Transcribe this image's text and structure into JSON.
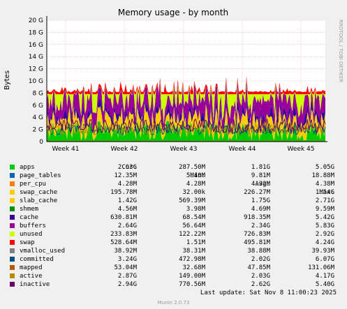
{
  "chart_data": {
    "type": "area",
    "title": "Memory usage - by month",
    "ylabel": "Bytes",
    "ylim": [
      0,
      20
    ],
    "yunit": "G",
    "yticks": [
      "0",
      "2 G",
      "4 G",
      "6 G",
      "8 G",
      "10 G",
      "12 G",
      "14 G",
      "16 G",
      "18 G",
      "20 G"
    ],
    "xticks": [
      "Week 41",
      "Week 42",
      "Week 43",
      "Week 44",
      "Week 45"
    ],
    "grid": true,
    "legend_placement": "bottom",
    "headers": {
      "cur": "Cur:",
      "min": "Min:",
      "avg": "Avg:",
      "max": "Max:"
    },
    "series": [
      {
        "name": "apps",
        "color": "#00cc00",
        "cur": "2.63G",
        "min": "287.50M",
        "avg": "1.81G",
        "max": "5.05G",
        "value_g": 1.81
      },
      {
        "name": "page_tables",
        "color": "#0066b3",
        "cur": "12.35M",
        "min": "5.40M",
        "avg": "9.81M",
        "max": "18.88M",
        "value_g": 0.01
      },
      {
        "name": "per_cpu",
        "color": "#ff8000",
        "cur": "4.28M",
        "min": "4.28M",
        "avg": "4.32M",
        "max": "4.38M",
        "value_g": 0.004
      },
      {
        "name": "swap_cache",
        "color": "#ffcc00",
        "cur": "195.78M",
        "min": "32.00k",
        "avg": "226.27M",
        "max": "1.54G",
        "value_g": 0.22
      },
      {
        "name": "slab_cache",
        "color": "#ffcc00",
        "cur": "1.42G",
        "min": "569.39M",
        "avg": "1.75G",
        "max": "2.71G",
        "value_g": 1.75
      },
      {
        "name": "shmem",
        "color": "#008f00",
        "cur": "4.56M",
        "min": "3.98M",
        "avg": "4.69M",
        "max": "9.59M",
        "value_g": 0.005
      },
      {
        "name": "cache",
        "color": "#330099",
        "cur": "630.81M",
        "min": "68.54M",
        "avg": "918.35M",
        "max": "5.42G",
        "value_g": 0.9
      },
      {
        "name": "buffers",
        "color": "#990099",
        "cur": "2.64G",
        "min": "56.64M",
        "avg": "2.34G",
        "max": "5.83G",
        "value_g": 2.34
      },
      {
        "name": "unused",
        "color": "#ccff00",
        "cur": "233.83M",
        "min": "122.22M",
        "avg": "726.83M",
        "max": "2.92G",
        "value_g": 0.73
      },
      {
        "name": "swap",
        "color": "#ff0000",
        "cur": "528.64M",
        "min": "1.51M",
        "avg": "495.81M",
        "max": "4.24G",
        "value_g": 0.5
      },
      {
        "name": "vmalloc_used",
        "color": "#808080",
        "cur": "38.92M",
        "min": "38.31M",
        "avg": "38.88M",
        "max": "39.93M"
      },
      {
        "name": "committed",
        "color": "#004d80",
        "cur": "3.24G",
        "min": "472.98M",
        "avg": "2.02G",
        "max": "6.07G"
      },
      {
        "name": "mapped",
        "color": "#b35900",
        "cur": "53.04M",
        "min": "32.68M",
        "avg": "47.85M",
        "max": "131.06M"
      },
      {
        "name": "active",
        "color": "#b38f00",
        "cur": "2.87G",
        "min": "149.00M",
        "avg": "2.03G",
        "max": "4.17G"
      },
      {
        "name": "inactive",
        "color": "#6b006b",
        "cur": "2.94G",
        "min": "770.56M",
        "avg": "2.62G",
        "max": "5.40G"
      }
    ]
  },
  "footer": {
    "last_update": "Last update:  Sat Nov  8 11:00:23 2025",
    "version": "Munin 2.0.73",
    "side_label": "RRDTOOL / TOBI OETIKER"
  }
}
